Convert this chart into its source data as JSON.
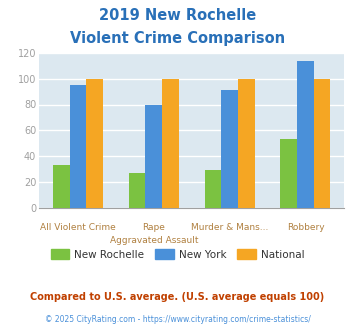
{
  "title_line1": "2019 New Rochelle",
  "title_line2": "Violent Crime Comparison",
  "cat_labels_row1": [
    "",
    "Rape",
    "Murder & Mans...",
    ""
  ],
  "cat_labels_row2": [
    "All Violent Crime",
    "Aggravated Assault",
    "",
    "Robbery"
  ],
  "new_rochelle": [
    33,
    27,
    29,
    53
  ],
  "new_york": [
    95,
    80,
    91,
    114
  ],
  "national": [
    100,
    100,
    100,
    100
  ],
  "color_nr": "#7bc241",
  "color_ny": "#4a90d9",
  "color_nat": "#f5a623",
  "ylim": [
    0,
    120
  ],
  "yticks": [
    0,
    20,
    40,
    60,
    80,
    100,
    120
  ],
  "legend_labels": [
    "New Rochelle",
    "New York",
    "National"
  ],
  "footnote1": "Compared to U.S. average. (U.S. average equals 100)",
  "footnote2": "© 2025 CityRating.com - https://www.cityrating.com/crime-statistics/",
  "title_color": "#2970b8",
  "ytick_color": "#a0a0a0",
  "xlabel_color": "#b08040",
  "bg_color": "#dce8f0",
  "grid_color": "#ffffff",
  "footnote1_color": "#c04000",
  "footnote2_color": "#4a90d9",
  "legend_text_color": "#333333",
  "bar_width": 0.22
}
